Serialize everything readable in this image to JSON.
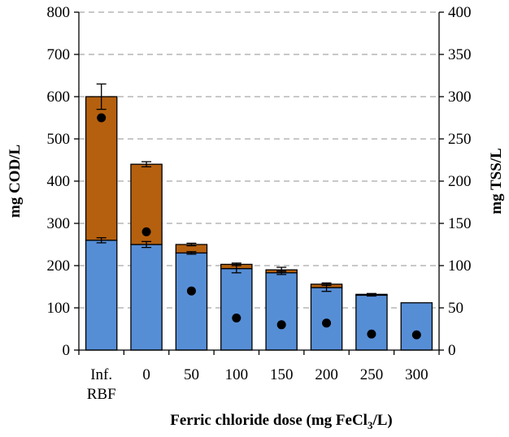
{
  "chart_data": {
    "type": "bar",
    "categories": [
      [
        "Inf.",
        "RBF"
      ],
      [
        "0"
      ],
      [
        "50"
      ],
      [
        "100"
      ],
      [
        "150"
      ],
      [
        "200"
      ],
      [
        "250"
      ],
      [
        "300"
      ]
    ],
    "series": [
      {
        "values": [
          260,
          250,
          230,
          193,
          183,
          148,
          130,
          112
        ],
        "color": "#568ed6",
        "errors": [
          6,
          7,
          3,
          10,
          4,
          9,
          2,
          0
        ]
      },
      {
        "values": [
          340,
          190,
          20,
          10,
          7,
          8,
          2,
          0
        ],
        "color": "#b5600e",
        "errors": [
          30,
          6,
          3,
          3,
          6,
          3,
          2,
          0
        ]
      },
      {
        "axis": "right",
        "marker": "circle",
        "values": [
          275,
          140,
          70,
          38,
          30,
          32,
          19,
          18
        ],
        "color": "#000000"
      }
    ],
    "xlabel": "Ferric chloride dose (mg FeCl",
    "xlabel_sub": "3",
    "xlabel_end": "/L)",
    "ylabel": "mg COD/L",
    "y2label": "mg TSS/L",
    "ylim": [
      0,
      800
    ],
    "y2lim": [
      0,
      400
    ],
    "yticks": [
      "0",
      "100",
      "200",
      "300",
      "400",
      "500",
      "600",
      "700",
      "800"
    ],
    "y2ticks": [
      "0",
      "50",
      "100",
      "150",
      "200",
      "250",
      "300",
      "350",
      "400"
    ],
    "grid": "horizontal dashed"
  }
}
